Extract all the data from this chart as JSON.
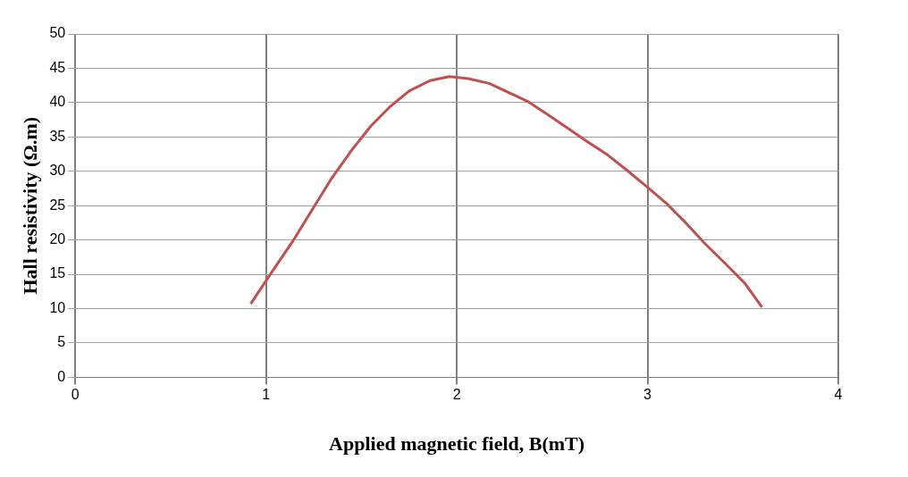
{
  "chart_data": {
    "type": "line",
    "xlabel": "Applied magnetic field, B(mT)",
    "ylabel": "Hall resistivity (Ω.m)",
    "xlim": [
      0,
      4
    ],
    "xticks": [
      0,
      1,
      2,
      3,
      4
    ],
    "ylim": [
      0,
      50
    ],
    "yticks": [
      0,
      5,
      10,
      15,
      20,
      25,
      30,
      35,
      40,
      45,
      50
    ],
    "grid": true,
    "series": [
      {
        "color": "#c0504d",
        "x": [
          0.92,
          1.02,
          1.14,
          1.24,
          1.34,
          1.45,
          1.55,
          1.65,
          1.75,
          1.86,
          1.96,
          2.06,
          2.17,
          2.27,
          2.37,
          2.48,
          2.58,
          2.68,
          2.79,
          2.89,
          2.99,
          3.1,
          3.2,
          3.3,
          3.41,
          3.51,
          3.6
        ],
        "values": [
          10.7,
          14.9,
          19.8,
          24.3,
          28.8,
          33.1,
          36.6,
          39.4,
          41.7,
          43.2,
          43.8,
          43.5,
          42.8,
          41.5,
          40.2,
          38.2,
          36.3,
          34.4,
          32.4,
          30.2,
          27.9,
          25.3,
          22.5,
          19.5,
          16.5,
          13.7,
          10.2
        ]
      }
    ]
  }
}
